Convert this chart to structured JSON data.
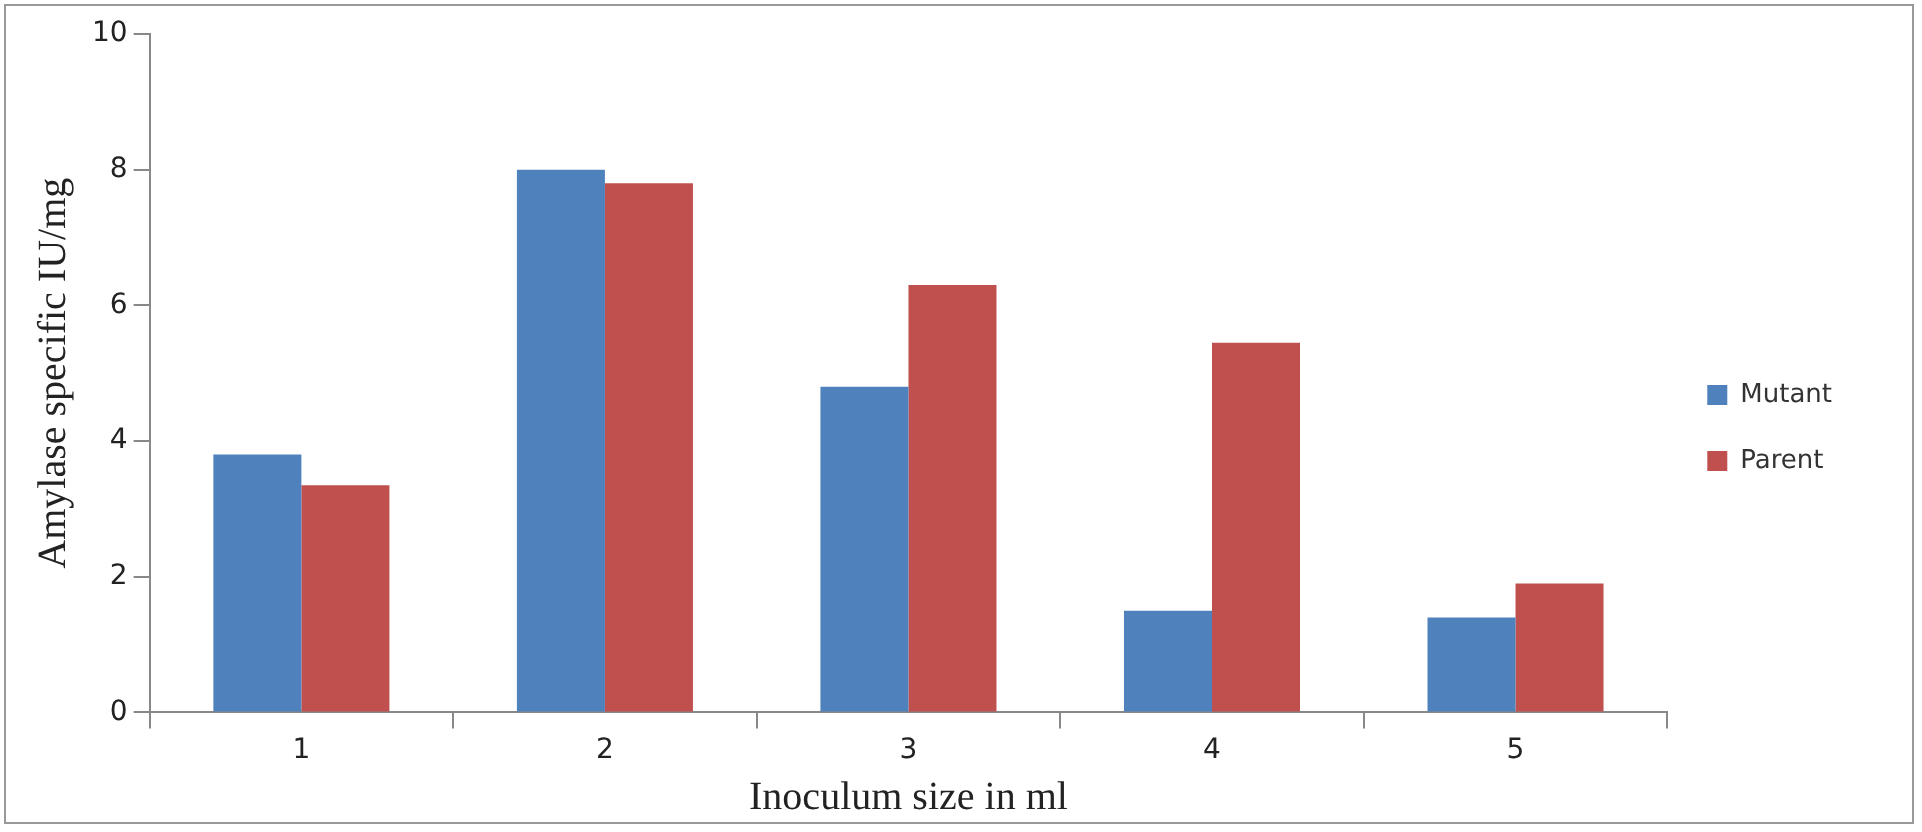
{
  "chart_data": {
    "type": "bar",
    "xlabel": "Inoculum size in ml",
    "ylabel": "Amylase specific IU/mg",
    "categories": [
      "1",
      "2",
      "3",
      "4",
      "5"
    ],
    "series": [
      {
        "name": "Mutant",
        "color": "#4f81bd",
        "values": [
          3.8,
          8.0,
          4.8,
          1.5,
          1.4
        ]
      },
      {
        "name": "Parent",
        "color": "#c0504d",
        "values": [
          3.35,
          7.8,
          6.3,
          5.45,
          1.9
        ]
      }
    ],
    "ylim": [
      0,
      10
    ],
    "yticks": [
      0,
      2,
      4,
      6,
      8,
      10
    ],
    "grid": false,
    "legend": "right"
  }
}
